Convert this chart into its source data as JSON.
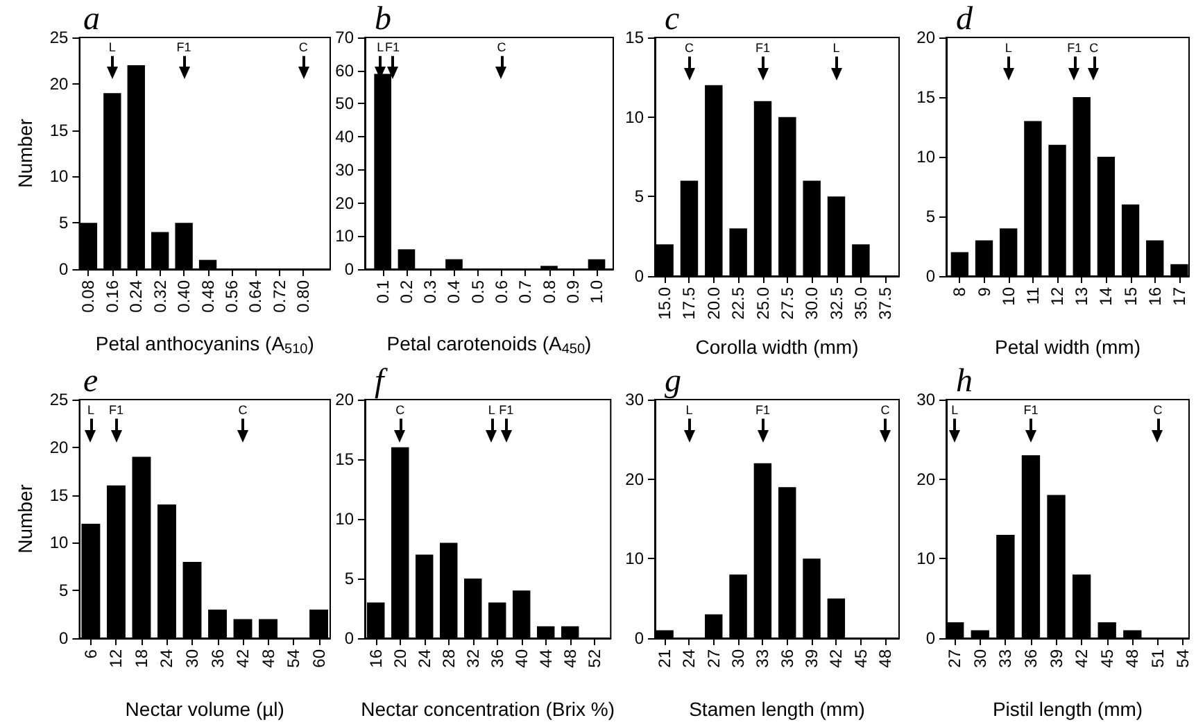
{
  "chart_data": [
    {
      "type": "bar",
      "title": "a",
      "xlabel": "Petal anthocyanins (A$_{510}$)",
      "ylabel": "Number",
      "color": "#000000",
      "x": [
        0.08,
        0.16,
        0.24,
        0.32,
        0.4,
        0.48,
        0.56,
        0.64,
        0.72,
        0.8
      ],
      "values": [
        5,
        19,
        22,
        4,
        5,
        1,
        0,
        0,
        0,
        0
      ],
      "xlim": [
        0.05,
        0.89
      ],
      "xticks": [
        "0.08",
        "0.16",
        "0.24",
        "0.32",
        {
          "value": 0.4,
          "label": "0.40"
        },
        "0.48",
        "0.56",
        "0.64",
        "0.72",
        {
          "value": 0.8,
          "label": "0.80"
        }
      ],
      "ylim": [
        0,
        25
      ],
      "yticks": [
        0,
        5,
        10,
        15,
        20,
        25
      ],
      "ref_lines": [
        {
          "axis": "x",
          "value": 0.16,
          "label": "L"
        },
        {
          "axis": "x",
          "value": 0.4,
          "label": "F1"
        },
        {
          "axis": "x",
          "value": 0.8,
          "label": "C"
        }
      ]
    },
    {
      "type": "bar",
      "title": "b",
      "xlabel": "Petal carotenoids (A$_{450}$)",
      "color": "#000000",
      "x": [
        0.1,
        0.2,
        0.3,
        0.4,
        0.5,
        0.6,
        0.7,
        0.8,
        0.9,
        1.0
      ],
      "values": [
        59,
        6,
        0,
        3,
        0,
        0,
        0,
        1,
        0,
        3
      ],
      "xlim": [
        0.025,
        1.07
      ],
      "xticks": [
        0.1,
        0.2,
        0.3,
        0.4,
        0.5,
        0.6,
        0.7,
        0.8,
        0.9,
        {
          "value": 1.0,
          "label": "1.0"
        }
      ],
      "ylim": [
        0,
        70
      ],
      "yticks": [
        0,
        10,
        20,
        30,
        40,
        50,
        60,
        70
      ],
      "ref_lines": [
        {
          "axis": "x",
          "value": 0.09,
          "label": "L"
        },
        {
          "axis": "x",
          "value": 0.14,
          "label": "F1"
        },
        {
          "axis": "x",
          "value": 0.6,
          "label": "C"
        }
      ]
    },
    {
      "type": "bar",
      "title": "c",
      "xlabel": "Corolla width (mm)",
      "color": "#000000",
      "x": [
        15,
        17.5,
        20,
        22.5,
        25,
        27.5,
        30,
        32.5,
        35,
        37.5
      ],
      "values": [
        2,
        6,
        12,
        3,
        11,
        10,
        6,
        5,
        2,
        0
      ],
      "xlim": [
        14,
        38.9
      ],
      "xticks": [
        {
          "value": 15,
          "label": "15.0"
        },
        17.5,
        {
          "value": 20,
          "label": "20.0"
        },
        22.5,
        {
          "value": 25,
          "label": "25.0"
        },
        27.5,
        {
          "value": 30,
          "label": "30.0"
        },
        32.5,
        {
          "value": 35,
          "label": "35.0"
        },
        37.5
      ],
      "ylim": [
        0,
        15
      ],
      "yticks": [
        0,
        5,
        10,
        15
      ],
      "ref_lines": [
        {
          "axis": "x",
          "value": 17.5,
          "label": "C"
        },
        {
          "axis": "x",
          "value": 25,
          "label": "F1"
        },
        {
          "axis": "x",
          "value": 32.5,
          "label": "L"
        }
      ]
    },
    {
      "type": "bar",
      "title": "d",
      "xlabel": "Petal width (mm)",
      "color": "#000000",
      "x": [
        8,
        9,
        10,
        11,
        12,
        13,
        14,
        15,
        16,
        17
      ],
      "values": [
        2,
        3,
        4,
        13,
        11,
        15,
        10,
        6,
        3,
        1
      ],
      "xlim": [
        7.45,
        17.4
      ],
      "xticks": [
        8,
        9,
        10,
        11,
        12,
        13,
        14,
        15,
        16,
        17
      ],
      "ylim": [
        0,
        20
      ],
      "yticks": [
        0,
        5,
        10,
        15,
        20
      ],
      "ref_lines": [
        {
          "axis": "x",
          "value": 10,
          "label": "L"
        },
        {
          "axis": "x",
          "value": 12.7,
          "label": "F1"
        },
        {
          "axis": "x",
          "value": 13.5,
          "label": "C"
        }
      ]
    },
    {
      "type": "bar",
      "title": "e",
      "xlabel": "Nectar volume (µl)",
      "ylabel": "Number",
      "color": "#000000",
      "x": [
        6,
        12,
        18,
        24,
        30,
        36,
        42,
        48,
        54,
        60
      ],
      "values": [
        12,
        16,
        19,
        14,
        8,
        3,
        2,
        2,
        0,
        3
      ],
      "xlim": [
        3.3,
        62.7
      ],
      "xticks": [
        6,
        12,
        18,
        24,
        30,
        36,
        42,
        48,
        54,
        60
      ],
      "ylim": [
        0,
        25
      ],
      "yticks": [
        0,
        5,
        10,
        15,
        20,
        25
      ],
      "ref_lines": [
        {
          "axis": "x",
          "value": 6,
          "label": "L"
        },
        {
          "axis": "x",
          "value": 12,
          "label": "F1"
        },
        {
          "axis": "x",
          "value": 42,
          "label": "C"
        }
      ]
    },
    {
      "type": "bar",
      "title": "f",
      "xlabel": "Nectar concentration (Brix %)",
      "color": "#000000",
      "x": [
        16,
        20,
        24,
        28,
        32,
        36,
        40,
        44,
        48,
        52
      ],
      "values": [
        3,
        16,
        7,
        8,
        5,
        3,
        4,
        1,
        1,
        0
      ],
      "xlim": [
        14.2,
        54.7
      ],
      "xticks": [
        16,
        20,
        24,
        28,
        32,
        36,
        40,
        44,
        48,
        52
      ],
      "ylim": [
        0,
        20
      ],
      "yticks": [
        0,
        5,
        10,
        15,
        20
      ],
      "ref_lines": [
        {
          "axis": "x",
          "value": 20,
          "label": "C"
        },
        {
          "axis": "x",
          "value": 35.1,
          "label": "L"
        },
        {
          "axis": "x",
          "value": 37.5,
          "label": "F1"
        }
      ]
    },
    {
      "type": "bar",
      "title": "g",
      "xlabel": "Stamen length (mm)",
      "color": "#000000",
      "x": [
        21,
        24,
        27,
        30,
        33,
        36,
        39,
        42,
        45,
        48
      ],
      "values": [
        1,
        0,
        3,
        8,
        22,
        19,
        10,
        5,
        0,
        0
      ],
      "xlim": [
        19.8,
        49.7
      ],
      "xticks": [
        21,
        24,
        27,
        30,
        33,
        36,
        39,
        42,
        45,
        48
      ],
      "ylim": [
        0,
        30
      ],
      "yticks": [
        0,
        10,
        20,
        30
      ],
      "ref_lines": [
        {
          "axis": "x",
          "value": 24,
          "label": "L"
        },
        {
          "axis": "x",
          "value": 33,
          "label": "F1"
        },
        {
          "axis": "x",
          "value": 48,
          "label": "C"
        }
      ]
    },
    {
      "type": "bar",
      "title": "h",
      "xlabel": "Pistil length (mm)",
      "color": "#000000",
      "x": [
        27,
        30,
        33,
        36,
        39,
        42,
        45,
        48,
        51,
        54
      ],
      "values": [
        2,
        1,
        13,
        23,
        18,
        8,
        2,
        1,
        0,
        0
      ],
      "xlim": [
        26,
        54.7
      ],
      "xticks": [
        27,
        30,
        33,
        36,
        39,
        42,
        45,
        48,
        51,
        54
      ],
      "ylim": [
        0,
        30
      ],
      "yticks": [
        0,
        10,
        20,
        30
      ],
      "ref_lines": [
        {
          "axis": "x",
          "value": 27,
          "label": "L"
        },
        {
          "axis": "x",
          "value": 36,
          "label": "F1"
        },
        {
          "axis": "x",
          "value": 51,
          "label": "C"
        }
      ]
    }
  ]
}
